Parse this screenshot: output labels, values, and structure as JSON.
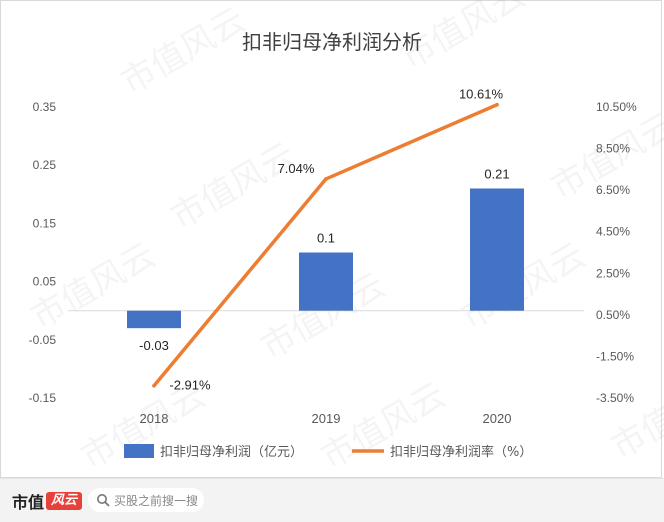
{
  "chart_data": {
    "type": "bar+line",
    "title": "扣非归母净利润分析",
    "categories": [
      "2018",
      "2019",
      "2020"
    ],
    "series": [
      {
        "name": "扣非归母净利润（亿元）",
        "type": "bar",
        "axis": "left",
        "values": [
          -0.03,
          0.1,
          0.21
        ],
        "labels": [
          "-0.03",
          "0.1",
          "0.21"
        ],
        "color": "#4472C4"
      },
      {
        "name": "扣非归母净利润率（%）",
        "type": "line",
        "axis": "right",
        "values": [
          -2.91,
          7.04,
          10.61
        ],
        "labels": [
          "-2.91%",
          "7.04%",
          "10.61%"
        ],
        "color": "#ED7D31"
      }
    ],
    "left_axis": {
      "ylim": [
        -0.15,
        0.35
      ],
      "ticks": [
        0.35,
        0.25,
        0.15,
        0.05,
        -0.05,
        -0.15
      ],
      "tick_labels": [
        "0.35",
        "0.25",
        "0.15",
        "0.05",
        "-0.05",
        "-0.15"
      ]
    },
    "right_axis": {
      "ylim": [
        -3.5,
        10.5
      ],
      "ticks": [
        10.5,
        8.5,
        6.5,
        4.5,
        2.5,
        0.5,
        -1.5,
        -3.5
      ],
      "tick_labels": [
        "10.50%",
        "8.50%",
        "6.50%",
        "4.50%",
        "2.50%",
        "0.50%",
        "-1.50%",
        "-3.50%"
      ]
    },
    "grid": false,
    "legend_position": "bottom",
    "watermark": "市值风云"
  },
  "footer": {
    "brand_text": "市值",
    "brand_stamp": "风云",
    "search_placeholder": "买股之前搜一搜"
  }
}
